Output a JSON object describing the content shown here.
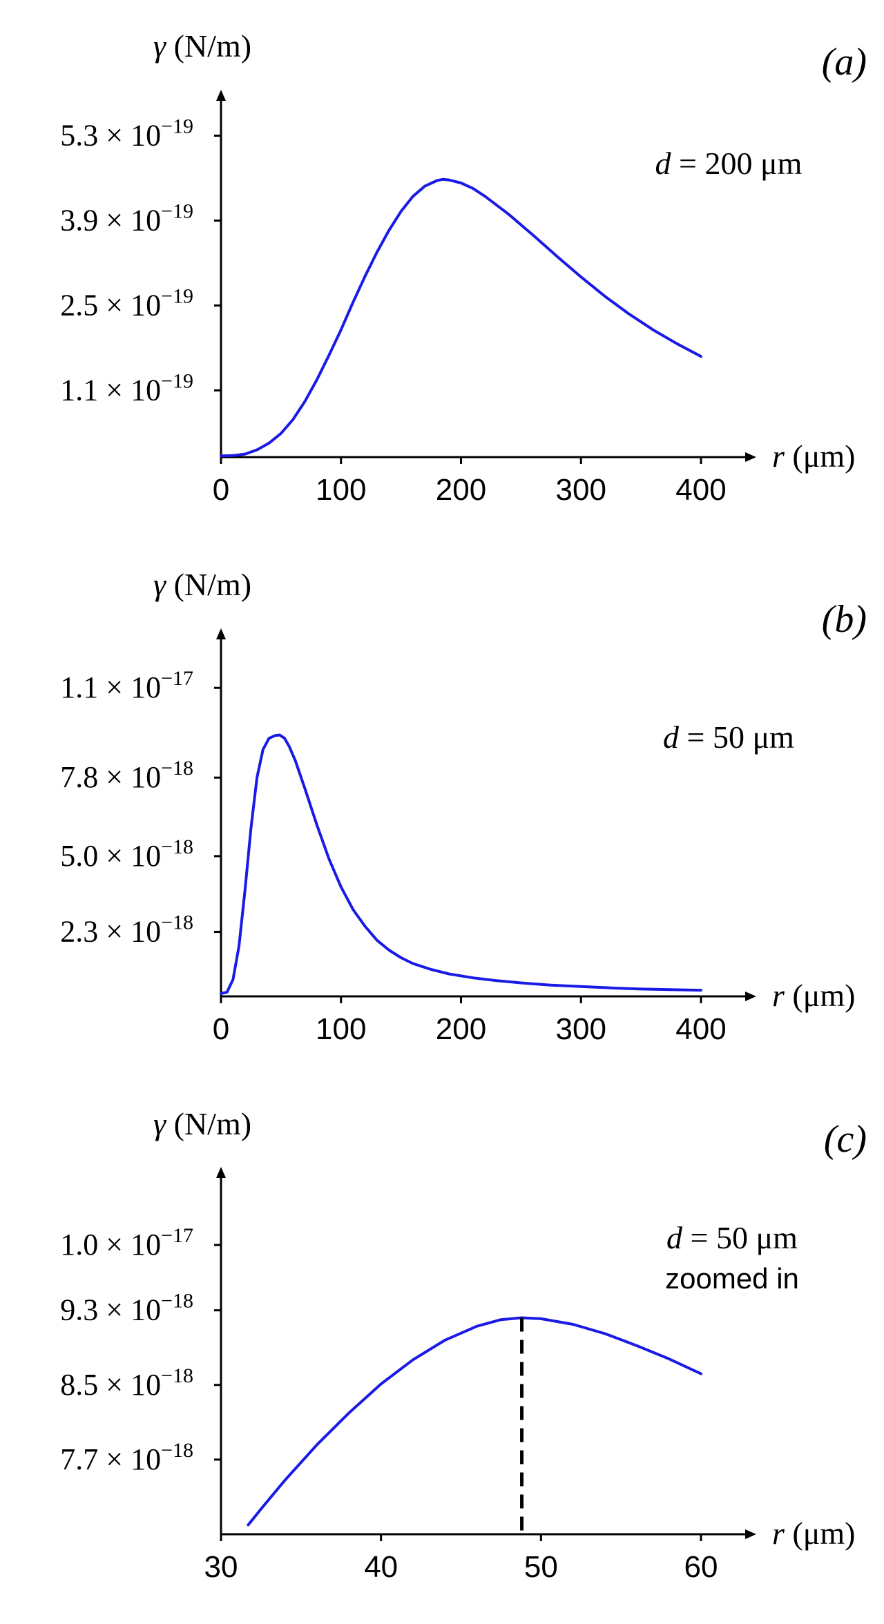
{
  "chart_data": [
    {
      "type": "line",
      "panel_label": "(a)",
      "ylabel": "γ (N/m)",
      "xlabel": "r (μm)",
      "annotation": [
        "d = 200 μm"
      ],
      "xticks": [
        "0",
        "100",
        "200",
        "300",
        "400"
      ],
      "xtick_values": [
        0,
        100,
        200,
        300,
        400
      ],
      "xlim": [
        0,
        440
      ],
      "yticks": [
        {
          "value": 5.3e-19,
          "mantissa": "5.3 × 10",
          "exp": "−19"
        },
        {
          "value": 3.9e-19,
          "mantissa": "3.9 × 10",
          "exp": "−19"
        },
        {
          "value": 2.5e-19,
          "mantissa": "2.5 × 10",
          "exp": "−19"
        },
        {
          "value": 1.1e-19,
          "mantissa": "1.1 × 10",
          "exp": "−19"
        }
      ],
      "ylim": [
        0,
        6e-19
      ],
      "grid": false,
      "series": [
        {
          "color": "#1a1ae6",
          "x": [
            0,
            10,
            20,
            30,
            40,
            50,
            60,
            70,
            80,
            90,
            100,
            110,
            120,
            130,
            140,
            150,
            160,
            170,
            180,
            185,
            190,
            200,
            210,
            220,
            240,
            260,
            280,
            300,
            320,
            340,
            360,
            380,
            400
          ],
          "y": [
            2e-21,
            2.5e-21,
            5e-21,
            1.2e-20,
            2.3e-20,
            3.9e-20,
            6.2e-20,
            9.2e-20,
            1.28e-19,
            1.68e-19,
            2.1e-19,
            2.55e-19,
            2.98e-19,
            3.38e-19,
            3.74e-19,
            4.05e-19,
            4.3e-19,
            4.47e-19,
            4.56e-19,
            4.58e-19,
            4.57e-19,
            4.52e-19,
            4.43e-19,
            4.3e-19,
            4e-19,
            3.66e-19,
            3.31e-19,
            2.97e-19,
            2.65e-19,
            2.36e-19,
            2.1e-19,
            1.87e-19,
            1.66e-19
          ]
        }
      ]
    },
    {
      "type": "line",
      "panel_label": "(b)",
      "ylabel": "γ (N/m)",
      "xlabel": "r (μm)",
      "annotation": [
        "d = 50 μm"
      ],
      "xticks": [
        "0",
        "100",
        "200",
        "300",
        "400"
      ],
      "xtick_values": [
        0,
        100,
        200,
        300,
        400
      ],
      "xlim": [
        0,
        440
      ],
      "yticks": [
        {
          "value": 1.1e-17,
          "mantissa": "1.1 × 10",
          "exp": "−17"
        },
        {
          "value": 7.8e-18,
          "mantissa": "7.8 × 10",
          "exp": "−18"
        },
        {
          "value": 5e-18,
          "mantissa": "5.0 × 10",
          "exp": "−18"
        },
        {
          "value": 2.3e-18,
          "mantissa": "2.3 × 10",
          "exp": "−18"
        }
      ],
      "ylim": [
        0,
        1.3e-17
      ],
      "grid": false,
      "series": [
        {
          "color": "#1a1ae6",
          "x": [
            0,
            5,
            10,
            15,
            20,
            25,
            30,
            35,
            40,
            45,
            49,
            53,
            57,
            62,
            70,
            80,
            90,
            100,
            110,
            120,
            130,
            140,
            150,
            160,
            175,
            190,
            210,
            230,
            250,
            275,
            300,
            325,
            350,
            375,
            400
          ],
          "y": [
            1e-19,
            1.5e-19,
            6e-19,
            1.8e-18,
            3.8e-18,
            6e-18,
            7.8e-18,
            8.8e-18,
            9.2e-18,
            9.3e-18,
            9.32e-18,
            9.2e-18,
            8.9e-18,
            8.4e-18,
            7.4e-18,
            6.1e-18,
            4.9e-18,
            3.9e-18,
            3.1e-18,
            2.5e-18,
            2e-18,
            1.65e-18,
            1.38e-18,
            1.17e-18,
            9.6e-19,
            8e-19,
            6.6e-19,
            5.6e-19,
            4.8e-19,
            4e-19,
            3.5e-19,
            3e-19,
            2.6e-19,
            2.4e-19,
            2.2e-19
          ]
        }
      ]
    },
    {
      "type": "line",
      "panel_label": "(c)",
      "ylabel": "γ (N/m)",
      "xlabel": "r (μm)",
      "annotation": [
        "d = 50 μm",
        "zoomed in"
      ],
      "xticks": [
        "30",
        "40",
        "50",
        "60"
      ],
      "xtick_values": [
        30,
        40,
        50,
        60
      ],
      "xlim": [
        30,
        63
      ],
      "yticks": [
        {
          "value": 1e-17,
          "mantissa": "1.0 × 10",
          "exp": "−17"
        },
        {
          "value": 9.3e-18,
          "mantissa": "9.3 × 10",
          "exp": "−18"
        },
        {
          "value": 8.5e-18,
          "mantissa": "8.5 × 10",
          "exp": "−18"
        },
        {
          "value": 7.7e-18,
          "mantissa": "7.7 × 10",
          "exp": "−18"
        }
      ],
      "ylim": [
        6.9e-18,
        1.08e-17
      ],
      "grid": false,
      "marker_x": 48.8,
      "series": [
        {
          "color": "#1a1ae6",
          "x": [
            31.7,
            32.5,
            34,
            36,
            38,
            40,
            42,
            44,
            46,
            47.5,
            48.8,
            50,
            52,
            54,
            56,
            58,
            60
          ],
          "y": [
            7e-18,
            7.17e-18,
            7.48e-18,
            7.86e-18,
            8.2e-18,
            8.51e-18,
            8.77e-18,
            8.98e-18,
            9.13e-18,
            9.2e-18,
            9.22e-18,
            9.21e-18,
            9.15e-18,
            9.05e-18,
            8.92e-18,
            8.78e-18,
            8.62e-18
          ]
        }
      ]
    }
  ]
}
